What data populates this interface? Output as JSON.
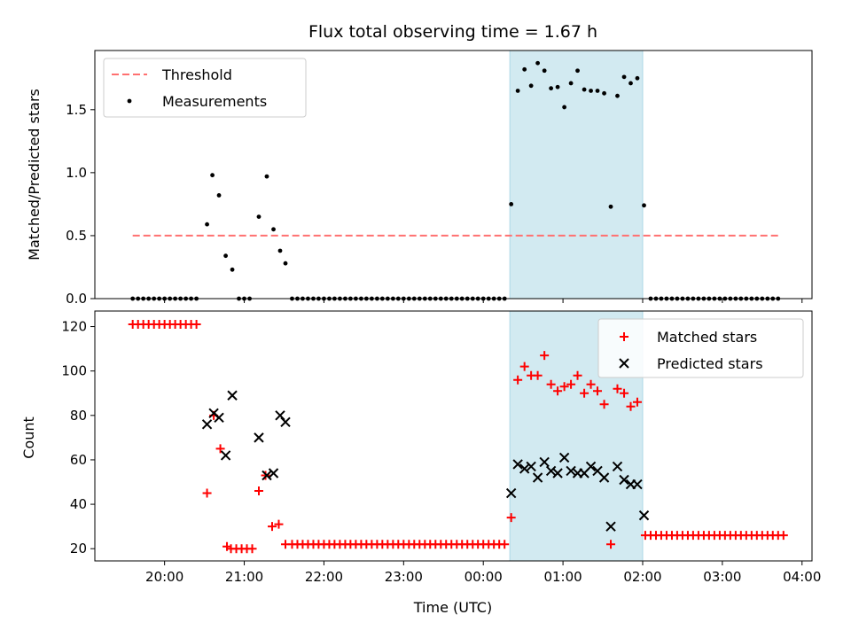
{
  "chart_data": [
    {
      "type": "scatter",
      "title": "Flux total observing time = 1.67 h",
      "xlabel": "",
      "ylabel": "Matched/Predicted stars",
      "x_unit": "hours since 20:00 UTC",
      "xlim": [
        -0.875,
        8.125
      ],
      "ylim": [
        0,
        1.97
      ],
      "yticks": [
        0.0,
        0.5,
        1.0,
        1.5
      ],
      "ytick_labels": [
        "0.0",
        "0.5",
        "1.0",
        "1.5"
      ],
      "highlight_span": {
        "x": [
          4.333,
          6.0
        ],
        "color": "#add8e6"
      },
      "legend": {
        "position": "upper left",
        "entries": [
          "Threshold",
          "Measurements"
        ]
      },
      "threshold": {
        "name": "Threshold",
        "y": 0.5,
        "x": [
          -0.4,
          7.733
        ],
        "color": "#ff7070",
        "style": "dashed"
      },
      "measurements": {
        "name": "Measurements",
        "color": "#000000",
        "points": [
          [
            -0.4,
            0
          ],
          [
            -0.333,
            0
          ],
          [
            -0.267,
            0
          ],
          [
            -0.2,
            0
          ],
          [
            -0.133,
            0
          ],
          [
            -0.067,
            0
          ],
          [
            0.0,
            0
          ],
          [
            0.067,
            0
          ],
          [
            0.133,
            0
          ],
          [
            0.2,
            0
          ],
          [
            0.267,
            0
          ],
          [
            0.333,
            0
          ],
          [
            0.4,
            0
          ],
          [
            0.533,
            0.59
          ],
          [
            0.6,
            0.98
          ],
          [
            0.683,
            0.82
          ],
          [
            0.767,
            0.34
          ],
          [
            0.85,
            0.23
          ],
          [
            0.933,
            0
          ],
          [
            1.0,
            0
          ],
          [
            1.067,
            0
          ],
          [
            1.183,
            0.65
          ],
          [
            1.283,
            0.97
          ],
          [
            1.367,
            0.55
          ],
          [
            1.45,
            0.38
          ],
          [
            1.517,
            0.28
          ],
          [
            1.6,
            0
          ],
          [
            1.667,
            0
          ],
          [
            1.733,
            0
          ],
          [
            1.8,
            0
          ],
          [
            1.867,
            0
          ],
          [
            1.933,
            0
          ],
          [
            2.0,
            0
          ],
          [
            2.067,
            0
          ],
          [
            2.133,
            0
          ],
          [
            2.2,
            0
          ],
          [
            2.267,
            0
          ],
          [
            2.333,
            0
          ],
          [
            2.4,
            0
          ],
          [
            2.467,
            0
          ],
          [
            2.533,
            0
          ],
          [
            2.6,
            0
          ],
          [
            2.667,
            0
          ],
          [
            2.733,
            0
          ],
          [
            2.8,
            0
          ],
          [
            2.867,
            0
          ],
          [
            2.933,
            0
          ],
          [
            3.0,
            0
          ],
          [
            3.067,
            0
          ],
          [
            3.133,
            0
          ],
          [
            3.2,
            0
          ],
          [
            3.267,
            0
          ],
          [
            3.333,
            0
          ],
          [
            3.4,
            0
          ],
          [
            3.467,
            0
          ],
          [
            3.533,
            0
          ],
          [
            3.6,
            0
          ],
          [
            3.667,
            0
          ],
          [
            3.733,
            0
          ],
          [
            3.8,
            0
          ],
          [
            3.867,
            0
          ],
          [
            3.933,
            0
          ],
          [
            4.0,
            0
          ],
          [
            4.067,
            0
          ],
          [
            4.133,
            0
          ],
          [
            4.2,
            0
          ],
          [
            4.267,
            0
          ],
          [
            4.35,
            0.75
          ],
          [
            4.433,
            1.65
          ],
          [
            4.517,
            1.82
          ],
          [
            4.6,
            1.69
          ],
          [
            4.683,
            1.87
          ],
          [
            4.767,
            1.81
          ],
          [
            4.85,
            1.67
          ],
          [
            4.933,
            1.68
          ],
          [
            5.017,
            1.52
          ],
          [
            5.1,
            1.71
          ],
          [
            5.183,
            1.81
          ],
          [
            5.267,
            1.66
          ],
          [
            5.35,
            1.65
          ],
          [
            5.433,
            1.65
          ],
          [
            5.517,
            1.63
          ],
          [
            5.6,
            0.73
          ],
          [
            5.683,
            1.61
          ],
          [
            5.767,
            1.76
          ],
          [
            5.85,
            1.71
          ],
          [
            5.933,
            1.75
          ],
          [
            6.017,
            0.74
          ],
          [
            6.1,
            0
          ],
          [
            6.167,
            0
          ],
          [
            6.233,
            0
          ],
          [
            6.3,
            0
          ],
          [
            6.367,
            0
          ],
          [
            6.433,
            0
          ],
          [
            6.5,
            0
          ],
          [
            6.567,
            0
          ],
          [
            6.633,
            0
          ],
          [
            6.7,
            0
          ],
          [
            6.767,
            0
          ],
          [
            6.833,
            0
          ],
          [
            6.9,
            0
          ],
          [
            6.967,
            0
          ],
          [
            7.033,
            0
          ],
          [
            7.1,
            0
          ],
          [
            7.167,
            0
          ],
          [
            7.233,
            0
          ],
          [
            7.3,
            0
          ],
          [
            7.367,
            0
          ],
          [
            7.433,
            0
          ],
          [
            7.5,
            0
          ],
          [
            7.567,
            0
          ],
          [
            7.633,
            0
          ],
          [
            7.7,
            0
          ]
        ]
      }
    },
    {
      "type": "scatter",
      "title": "",
      "xlabel": "Time (UTC)",
      "ylabel": "Count",
      "x_unit": "hours since 20:00 UTC",
      "xlim": [
        -0.875,
        8.125
      ],
      "ylim": [
        14.5,
        127
      ],
      "xticks": [
        0,
        1,
        2,
        3,
        4,
        5,
        6,
        7,
        8
      ],
      "xtick_labels": [
        "20:00",
        "21:00",
        "22:00",
        "23:00",
        "00:00",
        "01:00",
        "02:00",
        "03:00",
        "04:00"
      ],
      "yticks": [
        20,
        40,
        60,
        80,
        100,
        120
      ],
      "ytick_labels": [
        "20",
        "40",
        "60",
        "80",
        "100",
        "120"
      ],
      "highlight_span": {
        "x": [
          4.333,
          6.0
        ],
        "color": "#add8e6"
      },
      "legend": {
        "position": "upper right",
        "entries": [
          "Matched stars",
          "Predicted stars"
        ]
      },
      "matched": {
        "name": "Matched stars",
        "color": "#ff0000",
        "marker": "+",
        "points": [
          [
            -0.4,
            121
          ],
          [
            -0.333,
            121
          ],
          [
            -0.267,
            121
          ],
          [
            -0.2,
            121
          ],
          [
            -0.133,
            121
          ],
          [
            -0.067,
            121
          ],
          [
            0.0,
            121
          ],
          [
            0.067,
            121
          ],
          [
            0.133,
            121
          ],
          [
            0.2,
            121
          ],
          [
            0.267,
            121
          ],
          [
            0.333,
            121
          ],
          [
            0.4,
            121
          ],
          [
            0.533,
            45
          ],
          [
            0.617,
            80
          ],
          [
            0.7,
            65
          ],
          [
            0.783,
            21
          ],
          [
            0.833,
            20
          ],
          [
            0.9,
            20
          ],
          [
            0.967,
            20
          ],
          [
            1.033,
            20
          ],
          [
            1.1,
            20
          ],
          [
            1.183,
            46
          ],
          [
            1.267,
            53
          ],
          [
            1.35,
            30
          ],
          [
            1.433,
            31
          ],
          [
            1.517,
            22
          ],
          [
            1.6,
            22
          ],
          [
            1.667,
            22
          ],
          [
            1.733,
            22
          ],
          [
            1.8,
            22
          ],
          [
            1.867,
            22
          ],
          [
            1.933,
            22
          ],
          [
            2.0,
            22
          ],
          [
            2.067,
            22
          ],
          [
            2.133,
            22
          ],
          [
            2.2,
            22
          ],
          [
            2.267,
            22
          ],
          [
            2.333,
            22
          ],
          [
            2.4,
            22
          ],
          [
            2.467,
            22
          ],
          [
            2.533,
            22
          ],
          [
            2.6,
            22
          ],
          [
            2.667,
            22
          ],
          [
            2.733,
            22
          ],
          [
            2.8,
            22
          ],
          [
            2.867,
            22
          ],
          [
            2.933,
            22
          ],
          [
            3.0,
            22
          ],
          [
            3.067,
            22
          ],
          [
            3.133,
            22
          ],
          [
            3.2,
            22
          ],
          [
            3.267,
            22
          ],
          [
            3.333,
            22
          ],
          [
            3.4,
            22
          ],
          [
            3.467,
            22
          ],
          [
            3.533,
            22
          ],
          [
            3.6,
            22
          ],
          [
            3.667,
            22
          ],
          [
            3.733,
            22
          ],
          [
            3.8,
            22
          ],
          [
            3.867,
            22
          ],
          [
            3.933,
            22
          ],
          [
            4.0,
            22
          ],
          [
            4.067,
            22
          ],
          [
            4.133,
            22
          ],
          [
            4.2,
            22
          ],
          [
            4.267,
            22
          ],
          [
            4.35,
            34
          ],
          [
            4.433,
            96
          ],
          [
            4.517,
            102
          ],
          [
            4.6,
            98
          ],
          [
            4.683,
            98
          ],
          [
            4.767,
            107
          ],
          [
            4.85,
            94
          ],
          [
            4.933,
            91
          ],
          [
            5.017,
            93
          ],
          [
            5.1,
            94
          ],
          [
            5.183,
            98
          ],
          [
            5.267,
            90
          ],
          [
            5.35,
            94
          ],
          [
            5.433,
            91
          ],
          [
            5.517,
            85
          ],
          [
            5.6,
            22
          ],
          [
            5.683,
            92
          ],
          [
            5.767,
            90
          ],
          [
            5.85,
            84
          ],
          [
            5.933,
            86
          ],
          [
            6.033,
            26
          ],
          [
            6.1,
            26
          ],
          [
            6.167,
            26
          ],
          [
            6.233,
            26
          ],
          [
            6.3,
            26
          ],
          [
            6.367,
            26
          ],
          [
            6.433,
            26
          ],
          [
            6.5,
            26
          ],
          [
            6.567,
            26
          ],
          [
            6.633,
            26
          ],
          [
            6.7,
            26
          ],
          [
            6.767,
            26
          ],
          [
            6.833,
            26
          ],
          [
            6.9,
            26
          ],
          [
            6.967,
            26
          ],
          [
            7.033,
            26
          ],
          [
            7.1,
            26
          ],
          [
            7.167,
            26
          ],
          [
            7.233,
            26
          ],
          [
            7.3,
            26
          ],
          [
            7.367,
            26
          ],
          [
            7.433,
            26
          ],
          [
            7.5,
            26
          ],
          [
            7.567,
            26
          ],
          [
            7.633,
            26
          ],
          [
            7.7,
            26
          ],
          [
            7.767,
            26
          ]
        ]
      },
      "predicted": {
        "name": "Predicted stars",
        "color": "#000000",
        "marker": "x",
        "points": [
          [
            0.533,
            76
          ],
          [
            0.617,
            81
          ],
          [
            0.683,
            79
          ],
          [
            0.767,
            62
          ],
          [
            0.85,
            89
          ],
          [
            1.183,
            70
          ],
          [
            1.283,
            53
          ],
          [
            1.367,
            54
          ],
          [
            1.45,
            80
          ],
          [
            1.517,
            77
          ],
          [
            4.35,
            45
          ],
          [
            4.433,
            58
          ],
          [
            4.517,
            56
          ],
          [
            4.6,
            57
          ],
          [
            4.683,
            52
          ],
          [
            4.767,
            59
          ],
          [
            4.85,
            55
          ],
          [
            4.933,
            54
          ],
          [
            5.017,
            61
          ],
          [
            5.1,
            55
          ],
          [
            5.183,
            54
          ],
          [
            5.267,
            54
          ],
          [
            5.35,
            57
          ],
          [
            5.433,
            55
          ],
          [
            5.517,
            52
          ],
          [
            5.6,
            30
          ],
          [
            5.683,
            57
          ],
          [
            5.767,
            51
          ],
          [
            5.85,
            49
          ],
          [
            5.933,
            49
          ],
          [
            6.017,
            35
          ]
        ]
      }
    }
  ]
}
